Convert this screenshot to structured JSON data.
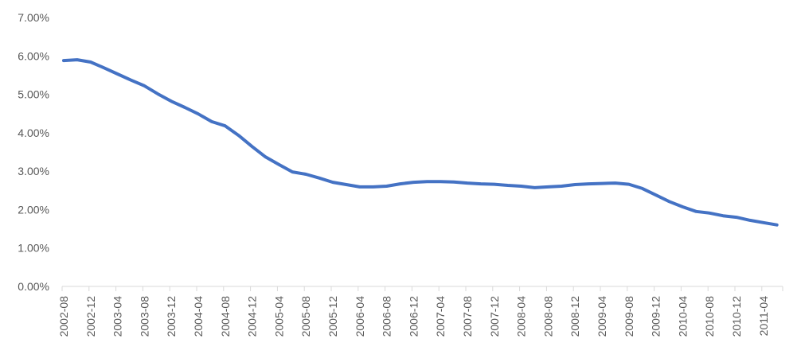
{
  "chart_data": {
    "type": "line",
    "title": "",
    "xlabel": "",
    "ylabel": "",
    "ylim": [
      0,
      0.07
    ],
    "y_ticks": [
      "0.00%",
      "1.00%",
      "2.00%",
      "3.00%",
      "4.00%",
      "5.00%",
      "6.00%",
      "7.00%"
    ],
    "x_ticks": [
      "2002-08",
      "2002-12",
      "2003-04",
      "2003-08",
      "2003-12",
      "2004-04",
      "2004-08",
      "2004-12",
      "2005-04",
      "2005-08",
      "2005-12",
      "2006-04",
      "2006-08",
      "2006-12",
      "2007-04",
      "2007-08",
      "2007-12",
      "2008-04",
      "2008-08",
      "2008-12",
      "2009-04",
      "2009-08",
      "2009-12",
      "2010-04",
      "2010-08",
      "2010-12",
      "2011-04"
    ],
    "grid": false,
    "legend": "none",
    "line_color": "#4472C4",
    "series": [
      {
        "x": [
          "2002-08",
          "2002-10",
          "2002-12",
          "2003-02",
          "2003-04",
          "2003-06",
          "2003-08",
          "2003-10",
          "2003-12",
          "2004-02",
          "2004-04",
          "2004-06",
          "2004-08",
          "2004-10",
          "2004-12",
          "2005-02",
          "2005-04",
          "2005-06",
          "2005-08",
          "2005-10",
          "2005-12",
          "2006-02",
          "2006-04",
          "2006-06",
          "2006-08",
          "2006-10",
          "2006-12",
          "2007-02",
          "2007-04",
          "2007-06",
          "2007-08",
          "2007-10",
          "2007-12",
          "2008-02",
          "2008-04",
          "2008-06",
          "2008-08",
          "2008-10",
          "2008-12",
          "2009-02",
          "2009-04",
          "2009-06",
          "2009-08",
          "2009-10",
          "2009-12",
          "2010-02",
          "2010-04",
          "2010-06",
          "2010-08",
          "2010-10",
          "2010-12",
          "2011-02",
          "2011-04",
          "2011-06"
        ],
        "values": [
          0.0588,
          0.059,
          0.0584,
          0.0569,
          0.0553,
          0.0537,
          0.0522,
          0.0501,
          0.0482,
          0.0466,
          0.0449,
          0.0429,
          0.0418,
          0.0393,
          0.0364,
          0.0337,
          0.0317,
          0.0298,
          0.0292,
          0.0282,
          0.0271,
          0.0265,
          0.0259,
          0.0259,
          0.0261,
          0.0267,
          0.0271,
          0.0273,
          0.0273,
          0.0272,
          0.0269,
          0.0267,
          0.0266,
          0.0263,
          0.0261,
          0.0257,
          0.0259,
          0.0261,
          0.0265,
          0.0267,
          0.0268,
          0.0269,
          0.0266,
          0.0255,
          0.0238,
          0.0221,
          0.0207,
          0.0195,
          0.0191,
          0.0184,
          0.018,
          0.0172,
          0.0166,
          0.016
        ]
      }
    ]
  }
}
